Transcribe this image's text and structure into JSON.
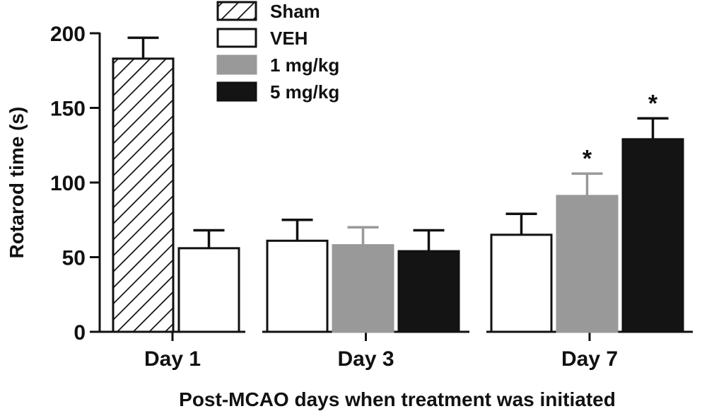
{
  "chart_data": {
    "type": "bar",
    "title": "",
    "xlabel": "Post-MCAO days when treatment was initiated",
    "ylabel": "Rotarod time (s)",
    "ylim": [
      0,
      200
    ],
    "yticks": [
      0,
      50,
      100,
      150,
      200
    ],
    "groups": [
      {
        "label": "Day 1",
        "bars": [
          {
            "series": "Sham",
            "value": 183,
            "error": 14
          },
          {
            "series": "VEH",
            "value": 56,
            "error": 12
          }
        ]
      },
      {
        "label": "Day 3",
        "bars": [
          {
            "series": "VEH",
            "value": 61,
            "error": 14
          },
          {
            "series": "1 mg/kg",
            "value": 58,
            "error": 12
          },
          {
            "series": "5 mg/kg",
            "value": 54,
            "error": 14
          }
        ]
      },
      {
        "label": "Day 7",
        "bars": [
          {
            "series": "VEH",
            "value": 65,
            "error": 14
          },
          {
            "series": "1 mg/kg",
            "value": 91,
            "error": 15,
            "annotation": "*"
          },
          {
            "series": "5 mg/kg",
            "value": 129,
            "error": 14,
            "annotation": "*"
          }
        ]
      }
    ],
    "legend": {
      "position": "top-center",
      "entries": [
        {
          "name": "Sham",
          "fill": "hatch"
        },
        {
          "name": "VEH",
          "fill": "#ffffff"
        },
        {
          "name": "1 mg/kg",
          "fill": "#999999"
        },
        {
          "name": "5 mg/kg",
          "fill": "#141414"
        }
      ]
    }
  }
}
